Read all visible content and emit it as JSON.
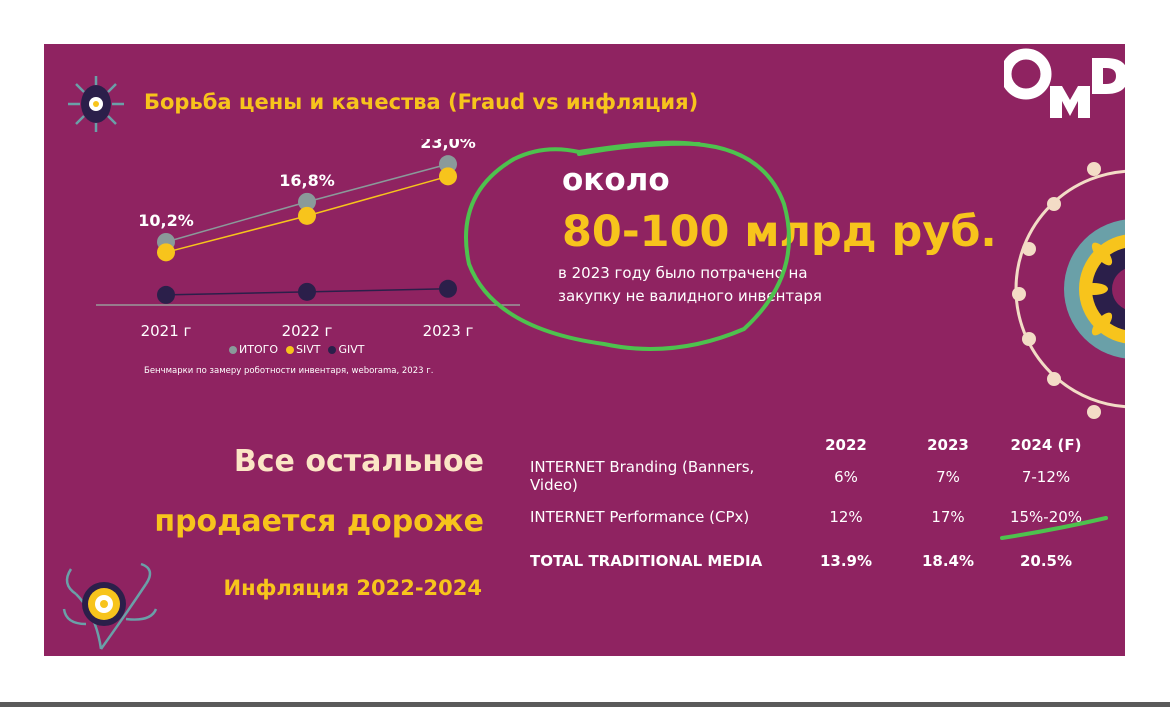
{
  "slide": {
    "title": "Борьба цены и качества (Fraud vs инфляция)",
    "logo_text": "OMD",
    "approx_label": "около",
    "amount": "80-100 млрд руб.",
    "amount_note": "в 2023 году было потрачено на закупку не валидного инвентаря",
    "headline_line1": "Все остальное",
    "headline_line2": "продается дороже",
    "headline_line3": "Инфляция 2022-2024"
  },
  "chart_data": [
    {
      "type": "line",
      "x": [
        "2021 г",
        "2022 г",
        "2023 г"
      ],
      "series": [
        {
          "name": "ИТОГО",
          "values": [
            10.2,
            16.8,
            23.0
          ],
          "labels": [
            "10,2%",
            "16,8%",
            "23,0%"
          ],
          "color": "#8a9a9a"
        },
        {
          "name": "SIVT",
          "values": [
            8.5,
            14.5,
            21.0
          ],
          "color": "#f7c41c"
        },
        {
          "name": "GIVT",
          "values": [
            1.5,
            2.0,
            2.5
          ],
          "color": "#2b1f4a"
        }
      ],
      "ylim": [
        0,
        25
      ],
      "source": "Бенчмарки по замеру роботности инвентаря, weborama, 2023 г.",
      "legend_position": "bottom"
    },
    {
      "type": "table",
      "columns": [
        "",
        "2022",
        "2023",
        "2024 (F)"
      ],
      "rows": [
        {
          "label": "INTERNET Branding (Banners, Video)",
          "values": [
            "6%",
            "7%",
            "7-12%"
          ],
          "bold": false
        },
        {
          "label": "INTERNET Performance (CPx)",
          "values": [
            "12%",
            "17%",
            "15%-20%"
          ],
          "bold": false
        },
        {
          "label": "TOTAL TRADITIONAL MEDIA",
          "values": [
            "13.9%",
            "18.4%",
            "20.5%"
          ],
          "bold": true
        }
      ]
    }
  ],
  "colors": {
    "background": "#8f2361",
    "accent": "#f7c41c",
    "annotation": "#4ec24e"
  }
}
